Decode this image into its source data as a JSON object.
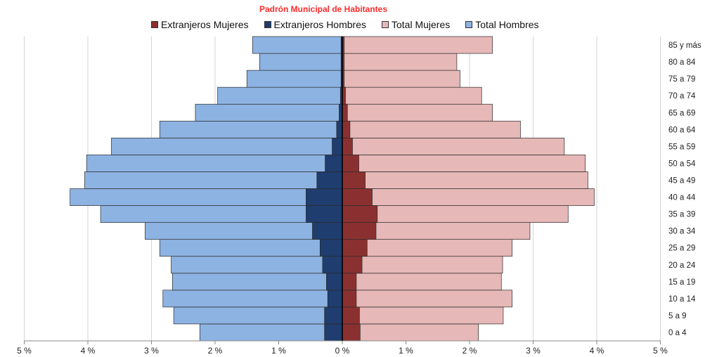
{
  "chart_data": {
    "type": "bar",
    "orientation": "horizontal",
    "title": "Padrón Municipal  de Habitantes",
    "title_color": "#ff2a2a",
    "categories": [
      "0 a 4",
      "5 a 9",
      "10 a 14",
      "15 a 19",
      "20 a 24",
      "25 a 29",
      "30 a 34",
      "35 a 39",
      "40 a 44",
      "45 a 49",
      "50 a 54",
      "55 a 59",
      "60 a 64",
      "65 a 69",
      "70 a 74",
      "75 a 79",
      "80 a 84",
      "85 y más"
    ],
    "series": [
      {
        "name": "Extranjeros Mujeres",
        "side": "right",
        "color": "#8b3030",
        "values": [
          0.28,
          0.27,
          0.22,
          0.22,
          0.31,
          0.39,
          0.53,
          0.55,
          0.47,
          0.36,
          0.26,
          0.16,
          0.12,
          0.08,
          0.05,
          0.03,
          0.03,
          0.03
        ]
      },
      {
        "name": "Extranjeros Hombres",
        "side": "left",
        "color": "#1f3d6e",
        "values": [
          0.28,
          0.28,
          0.23,
          0.25,
          0.31,
          0.35,
          0.47,
          0.57,
          0.57,
          0.4,
          0.27,
          0.16,
          0.09,
          0.05,
          0.03,
          0.02,
          0.02,
          0.02
        ]
      },
      {
        "name": "Total Mujeres",
        "side": "right",
        "color": "#e6b8b7",
        "values": [
          2.14,
          2.53,
          2.67,
          2.5,
          2.52,
          2.67,
          2.95,
          3.55,
          3.96,
          3.86,
          3.82,
          3.49,
          2.8,
          2.36,
          2.19,
          1.85,
          1.8,
          2.36
        ]
      },
      {
        "name": "Total Hombres",
        "side": "left",
        "color": "#8db3e2",
        "values": [
          2.24,
          2.65,
          2.82,
          2.67,
          2.69,
          2.87,
          3.1,
          3.8,
          4.28,
          4.05,
          4.02,
          3.63,
          2.87,
          2.31,
          1.96,
          1.5,
          1.3,
          1.41
        ]
      }
    ],
    "x_ticks": [
      "5 %",
      "4 %",
      "3 %",
      "2 %",
      "1 %",
      "0 %",
      "1 %",
      "2 %",
      "3 %",
      "4 %",
      "5 %"
    ],
    "xlim": [
      -5,
      5
    ],
    "grid": true,
    "legend_position": "top"
  }
}
